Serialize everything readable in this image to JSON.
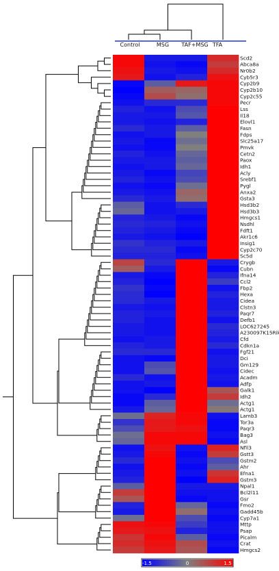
{
  "chart_data": {
    "type": "heatmap",
    "columns": [
      "Control",
      "MSG",
      "TAF+MSG",
      "TFA"
    ],
    "rows": [
      "Scd2",
      "Abca8a",
      "Nr0b2",
      "Cyb5r3",
      "Cyp2b9",
      "Cyp2b10",
      "Cyp2c55",
      "Pecr",
      "Lss",
      "Il18",
      "Elovl1",
      "Fasn",
      "Fdps",
      "Slc25a17",
      "Pmvk",
      "Cetn2",
      "Paox",
      "Idh1",
      "Acly",
      "Srebf1",
      "Pygl",
      "Anxa2",
      "Gsta3",
      "Hsd3b2",
      "Hsd3b3",
      "Hmgcs1",
      "Nsdhl",
      "Fdft1",
      "Akr1c6",
      "Insig1",
      "Cyp2c70",
      "Sc5d",
      "Crygb",
      "Cubn",
      "Ifna14",
      "Ccl2",
      "Fbp2",
      "Hexa",
      "Cidea",
      "Clstn3",
      "Paqr7",
      "Defb1",
      "LOC627245",
      "A230097K15Rik",
      "Cfd",
      "Cdkn1a",
      "Fgf21",
      "Dci",
      "Gm129",
      "Cidec",
      "Acadm",
      "Adfp",
      "Galk1",
      "Idh2",
      "Actg1",
      "Actg1",
      "Lamb3",
      "Tor3a",
      "Paqr3",
      "Bag3",
      "Asl",
      "Nfil3",
      "Gstt3",
      "Gstm2",
      "Ahr",
      "Efna1",
      "Gstm3",
      "Npal1",
      "Bcl2l11",
      "Gsr",
      "Fmo2",
      "Gadd45b",
      "Cyp7a1",
      "Mttp",
      "Psap",
      "Picalm",
      "Crat",
      "Hmgcs2"
    ],
    "values": [
      [
        1.4,
        -1.2,
        -1.2,
        1.0
      ],
      [
        1.4,
        -1.3,
        -1.4,
        0.8
      ],
      [
        1.3,
        -1.2,
        -1.3,
        1.0
      ],
      [
        1.2,
        -1.3,
        -1.1,
        1.3
      ],
      [
        -1.4,
        -0.4,
        1.2,
        1.4
      ],
      [
        -1.5,
        0.4,
        0.3,
        1.4
      ],
      [
        -1.4,
        0.6,
        0.2,
        1.4
      ],
      [
        -1.3,
        -1.0,
        -1.0,
        1.4
      ],
      [
        -1.1,
        -1.3,
        -0.6,
        1.5
      ],
      [
        -1.2,
        -1.2,
        -0.5,
        1.5
      ],
      [
        -1.2,
        -1.3,
        -1.1,
        1.5
      ],
      [
        -1.0,
        -1.2,
        -0.4,
        1.5
      ],
      [
        -1.3,
        -1.2,
        0.0,
        1.5
      ],
      [
        -1.2,
        -1.4,
        -0.2,
        1.5
      ],
      [
        -1.3,
        -1.4,
        0.0,
        1.5
      ],
      [
        -1.1,
        -1.3,
        -0.3,
        1.5
      ],
      [
        -1.2,
        -1.2,
        -0.4,
        1.5
      ],
      [
        -1.3,
        -1.2,
        -0.3,
        1.5
      ],
      [
        -1.2,
        -1.4,
        -0.7,
        1.5
      ],
      [
        -1.1,
        -1.3,
        -0.6,
        1.5
      ],
      [
        -1.3,
        -1.4,
        -0.2,
        1.5
      ],
      [
        -1.2,
        -1.3,
        0.3,
        1.5
      ],
      [
        -1.0,
        -1.2,
        0.2,
        1.5
      ],
      [
        -0.4,
        -1.3,
        -1.0,
        1.5
      ],
      [
        -0.3,
        -1.3,
        -1.2,
        1.5
      ],
      [
        -1.1,
        -1.2,
        -1.4,
        1.5
      ],
      [
        -1.0,
        -1.1,
        -1.3,
        1.5
      ],
      [
        -1.1,
        -1.2,
        -1.4,
        1.5
      ],
      [
        -1.2,
        -1.3,
        -1.5,
        1.5
      ],
      [
        -0.9,
        -1.1,
        -1.2,
        1.5
      ],
      [
        -1.0,
        -1.0,
        -1.4,
        1.5
      ],
      [
        -1.1,
        -1.1,
        -1.3,
        1.5
      ],
      [
        0.7,
        -1.0,
        1.5,
        -1.2
      ],
      [
        0.4,
        -1.2,
        1.5,
        -1.4
      ],
      [
        -1.2,
        -1.4,
        1.5,
        -1.1
      ],
      [
        -1.1,
        -1.5,
        1.5,
        -0.8
      ],
      [
        -0.9,
        -1.4,
        1.5,
        -1.3
      ],
      [
        -1.0,
        -1.5,
        1.5,
        -1.1
      ],
      [
        -1.0,
        -1.2,
        1.5,
        -1.2
      ],
      [
        -1.2,
        -1.3,
        1.5,
        -1.2
      ],
      [
        -1.1,
        -1.2,
        1.5,
        -1.1
      ],
      [
        -1.1,
        -1.3,
        1.5,
        -1.3
      ],
      [
        -1.2,
        -1.3,
        1.5,
        -1.0
      ],
      [
        -1.2,
        -1.3,
        1.5,
        -1.1
      ],
      [
        -1.3,
        -1.2,
        1.5,
        -1.2
      ],
      [
        -1.1,
        -1.2,
        1.5,
        -1.0
      ],
      [
        -1.0,
        -1.0,
        1.5,
        -1.3
      ],
      [
        -1.3,
        -1.4,
        1.5,
        -1.2
      ],
      [
        -1.3,
        -0.6,
        1.5,
        -1.2
      ],
      [
        -1.3,
        -0.5,
        1.5,
        -1.3
      ],
      [
        -1.0,
        -1.3,
        1.5,
        -1.2
      ],
      [
        -1.3,
        -1.2,
        1.5,
        -1.3
      ],
      [
        -1.3,
        -1.5,
        1.5,
        0.5
      ],
      [
        -1.4,
        -1.0,
        1.5,
        0.8
      ],
      [
        -1.4,
        -0.4,
        1.5,
        -0.2
      ],
      [
        -1.2,
        -0.3,
        1.5,
        0.1
      ],
      [
        -0.2,
        1.1,
        1.4,
        -1.3
      ],
      [
        -0.9,
        1.2,
        1.4,
        -1.4
      ],
      [
        -0.6,
        1.2,
        1.3,
        -1.4
      ],
      [
        -0.2,
        1.4,
        1.4,
        -1.3
      ],
      [
        -0.3,
        1.4,
        1.4,
        -1.4
      ],
      [
        -1.3,
        1.3,
        -1.3,
        1.1
      ],
      [
        -1.2,
        1.4,
        -1.4,
        0.8
      ],
      [
        -1.0,
        1.5,
        -1.3,
        -0.6
      ],
      [
        -1.3,
        1.5,
        -1.4,
        -0.4
      ],
      [
        -1.2,
        1.5,
        -1.3,
        0.9
      ],
      [
        -1.1,
        1.5,
        -1.5,
        1.1
      ],
      [
        -0.4,
        1.5,
        -1.2,
        -1.2
      ],
      [
        0.8,
        1.5,
        -1.3,
        -1.3
      ],
      [
        0.5,
        1.5,
        -1.4,
        -1.3
      ],
      [
        -1.1,
        1.5,
        -0.3,
        -1.4
      ],
      [
        -1.2,
        1.5,
        0.2,
        -1.3
      ],
      [
        -0.2,
        1.5,
        -0.6,
        -1.4
      ],
      [
        1.3,
        1.4,
        -0.8,
        -1.3
      ],
      [
        1.2,
        1.3,
        -1.1,
        -1.3
      ],
      [
        0.9,
        1.4,
        -0.4,
        -1.4
      ],
      [
        1.0,
        1.3,
        0.6,
        -1.3
      ],
      [
        0.8,
        1.2,
        0.5,
        -1.4
      ]
    ],
    "colorbar": {
      "min": -1.5,
      "max": 1.5,
      "ticks": [
        "-1.5",
        "0",
        "1.5"
      ],
      "low_color": "#0000ff",
      "mid_color": "#7f7f7f",
      "high_color": "#ff0000"
    },
    "column_dendrogram_color": "#2233cc",
    "title": "",
    "xlabel": "",
    "ylabel": ""
  }
}
